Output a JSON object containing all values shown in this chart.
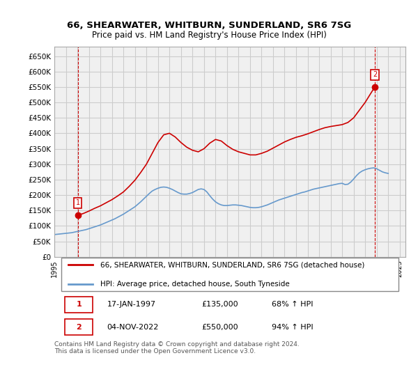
{
  "title_line1": "66, SHEARWATER, WHITBURN, SUNDERLAND, SR6 7SG",
  "title_line2": "Price paid vs. HM Land Registry's House Price Index (HPI)",
  "xlim": [
    1995.0,
    2025.5
  ],
  "ylim": [
    0,
    680000
  ],
  "yticks": [
    0,
    50000,
    100000,
    150000,
    200000,
    250000,
    300000,
    350000,
    400000,
    450000,
    500000,
    550000,
    600000,
    650000
  ],
  "ytick_labels": [
    "£0",
    "£50K",
    "£100K",
    "£150K",
    "£200K",
    "£250K",
    "£300K",
    "£350K",
    "£400K",
    "£450K",
    "£500K",
    "£550K",
    "£600K",
    "£650K"
  ],
  "grid_color": "#cccccc",
  "bg_color": "#ffffff",
  "plot_bg_color": "#f0f0f0",
  "hpi_color": "#6699cc",
  "price_color": "#cc0000",
  "sale1_date": 1997.04,
  "sale1_price": 135000,
  "sale1_label": "1",
  "sale2_date": 2022.84,
  "sale2_price": 550000,
  "sale2_label": "2",
  "legend_line1": "66, SHEARWATER, WHITBURN, SUNDERLAND, SR6 7SG (detached house)",
  "legend_line2": "HPI: Average price, detached house, South Tyneside",
  "table_row1": [
    "1",
    "17-JAN-1997",
    "£135,000",
    "68% ↑ HPI"
  ],
  "table_row2": [
    "2",
    "04-NOV-2022",
    "£550,000",
    "94% ↑ HPI"
  ],
  "footer": "Contains HM Land Registry data © Crown copyright and database right 2024.\nThis data is licensed under the Open Government Licence v3.0.",
  "hpi_x": [
    1995.0,
    1995.25,
    1995.5,
    1995.75,
    1996.0,
    1996.25,
    1996.5,
    1996.75,
    1997.0,
    1997.25,
    1997.5,
    1997.75,
    1998.0,
    1998.25,
    1998.5,
    1998.75,
    1999.0,
    1999.25,
    1999.5,
    1999.75,
    2000.0,
    2000.25,
    2000.5,
    2000.75,
    2001.0,
    2001.25,
    2001.5,
    2001.75,
    2002.0,
    2002.25,
    2002.5,
    2002.75,
    2003.0,
    2003.25,
    2003.5,
    2003.75,
    2004.0,
    2004.25,
    2004.5,
    2004.75,
    2005.0,
    2005.25,
    2005.5,
    2005.75,
    2006.0,
    2006.25,
    2006.5,
    2006.75,
    2007.0,
    2007.25,
    2007.5,
    2007.75,
    2008.0,
    2008.25,
    2008.5,
    2008.75,
    2009.0,
    2009.25,
    2009.5,
    2009.75,
    2010.0,
    2010.25,
    2010.5,
    2010.75,
    2011.0,
    2011.25,
    2011.5,
    2011.75,
    2012.0,
    2012.25,
    2012.5,
    2012.75,
    2013.0,
    2013.25,
    2013.5,
    2013.75,
    2014.0,
    2014.25,
    2014.5,
    2014.75,
    2015.0,
    2015.25,
    2015.5,
    2015.75,
    2016.0,
    2016.25,
    2016.5,
    2016.75,
    2017.0,
    2017.25,
    2017.5,
    2017.75,
    2018.0,
    2018.25,
    2018.5,
    2018.75,
    2019.0,
    2019.25,
    2019.5,
    2019.75,
    2020.0,
    2020.25,
    2020.5,
    2020.75,
    2021.0,
    2021.25,
    2021.5,
    2021.75,
    2022.0,
    2022.25,
    2022.5,
    2022.75,
    2023.0,
    2023.25,
    2023.5,
    2023.75,
    2024.0
  ],
  "hpi_y": [
    72000,
    73000,
    74000,
    75000,
    76000,
    77000,
    78000,
    80000,
    82000,
    84000,
    86000,
    88000,
    91000,
    94000,
    97000,
    100000,
    103000,
    107000,
    111000,
    115000,
    119000,
    123000,
    128000,
    133000,
    138000,
    144000,
    150000,
    156000,
    162000,
    170000,
    178000,
    187000,
    196000,
    205000,
    213000,
    218000,
    222000,
    225000,
    226000,
    225000,
    222000,
    218000,
    213000,
    208000,
    204000,
    203000,
    203000,
    205000,
    208000,
    213000,
    218000,
    220000,
    218000,
    210000,
    198000,
    187000,
    178000,
    172000,
    168000,
    166000,
    166000,
    167000,
    168000,
    168000,
    167000,
    166000,
    164000,
    162000,
    160000,
    159000,
    159000,
    160000,
    162000,
    165000,
    168000,
    172000,
    176000,
    180000,
    184000,
    187000,
    190000,
    193000,
    196000,
    199000,
    202000,
    205000,
    208000,
    210000,
    213000,
    216000,
    219000,
    221000,
    223000,
    225000,
    227000,
    229000,
    231000,
    233000,
    235000,
    237000,
    238000,
    234000,
    235000,
    242000,
    252000,
    263000,
    272000,
    278000,
    282000,
    285000,
    287000,
    288000,
    285000,
    280000,
    275000,
    272000,
    270000
  ],
  "price_x": [
    1997.04,
    1997.5,
    1998.0,
    1998.5,
    1999.0,
    1999.5,
    2000.0,
    2000.5,
    2001.0,
    2001.5,
    2002.0,
    2002.5,
    2003.0,
    2003.5,
    2004.0,
    2004.5,
    2005.0,
    2005.5,
    2006.0,
    2006.5,
    2007.0,
    2007.5,
    2008.0,
    2008.5,
    2009.0,
    2009.5,
    2010.0,
    2010.5,
    2011.0,
    2011.5,
    2012.0,
    2012.5,
    2013.0,
    2013.5,
    2014.0,
    2014.5,
    2015.0,
    2015.5,
    2016.0,
    2016.5,
    2017.0,
    2017.5,
    2018.0,
    2018.5,
    2019.0,
    2019.5,
    2020.0,
    2020.5,
    2021.0,
    2021.5,
    2022.0,
    2022.5,
    2022.84
  ],
  "price_y": [
    135000,
    140000,
    148000,
    157000,
    165000,
    175000,
    185000,
    197000,
    210000,
    228000,
    248000,
    273000,
    300000,
    335000,
    370000,
    395000,
    400000,
    388000,
    370000,
    355000,
    345000,
    340000,
    350000,
    368000,
    380000,
    375000,
    360000,
    348000,
    340000,
    335000,
    330000,
    330000,
    335000,
    342000,
    352000,
    362000,
    372000,
    380000,
    387000,
    392000,
    398000,
    405000,
    412000,
    418000,
    422000,
    425000,
    428000,
    435000,
    450000,
    475000,
    500000,
    530000,
    550000
  ]
}
